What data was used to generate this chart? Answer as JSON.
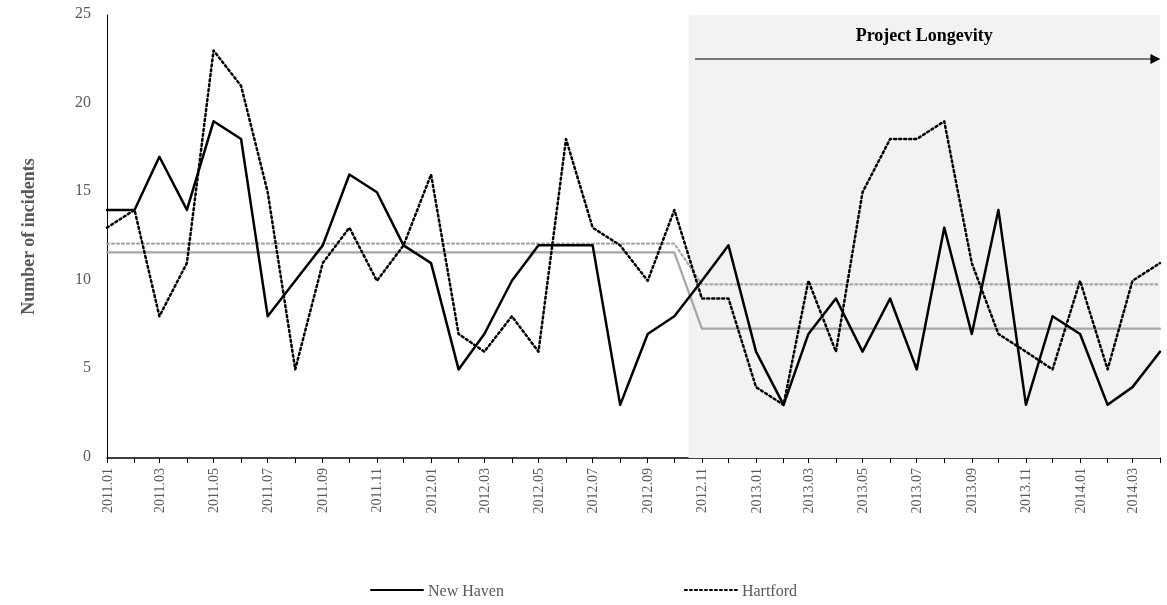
{
  "chart_data": {
    "type": "line",
    "ylabel": "Number of incidents",
    "x": [
      "2011-01",
      "2011-02",
      "2011-03",
      "2011-04",
      "2011-05",
      "2011-06",
      "2011-07",
      "2011-08",
      "2011-09",
      "2011-10",
      "2011-11",
      "2011-12",
      "2012-01",
      "2012-02",
      "2012-03",
      "2012-04",
      "2012-05",
      "2012-06",
      "2012-07",
      "2012-08",
      "2012-09",
      "2012-10",
      "2012-11",
      "2012-12",
      "2013-01",
      "2013-02",
      "2013-03",
      "2013-04",
      "2013-05",
      "2013-06",
      "2013-07",
      "2013-08",
      "2013-09",
      "2013-10",
      "2013-11",
      "2013-12",
      "2014-01",
      "2014-02",
      "2014-03",
      "2014-04"
    ],
    "xlim": [
      "2011-01",
      "2014-04"
    ],
    "xticks": [
      {
        "value": "2011-01",
        "label": "2011.01"
      },
      {
        "value": "2011-02",
        "label": null
      },
      {
        "value": "2011-03",
        "label": "2011.03"
      },
      {
        "value": "2011-04",
        "label": null
      },
      {
        "value": "2011-05",
        "label": "2011.05"
      },
      {
        "value": "2011-06",
        "label": null
      },
      {
        "value": "2011-07",
        "label": "2011.07"
      },
      {
        "value": "2011-08",
        "label": null
      },
      {
        "value": "2011-09",
        "label": "2011.09"
      },
      {
        "value": "2011-10",
        "label": null
      },
      {
        "value": "2011-11",
        "label": "2011.11"
      },
      {
        "value": "2011-12",
        "label": null
      },
      {
        "value": "2012-01",
        "label": "2012.01"
      },
      {
        "value": "2012-02",
        "label": null
      },
      {
        "value": "2012-03",
        "label": "2012.03"
      },
      {
        "value": "2012-04",
        "label": null
      },
      {
        "value": "2012-05",
        "label": "2012.05"
      },
      {
        "value": "2012-06",
        "label": null
      },
      {
        "value": "2012-07",
        "label": "2012.07"
      },
      {
        "value": "2012-08",
        "label": null
      },
      {
        "value": "2012-09",
        "label": "2012.09"
      },
      {
        "value": "2012-10",
        "label": null
      },
      {
        "value": "2012-11",
        "label": "2012.11"
      },
      {
        "value": "2012-12",
        "label": null
      },
      {
        "value": "2013-01",
        "label": "2013.01"
      },
      {
        "value": "2013-02",
        "label": null
      },
      {
        "value": "2013-03",
        "label": "2013.03"
      },
      {
        "value": "2013-04",
        "label": null
      },
      {
        "value": "2013-05",
        "label": "2013.05"
      },
      {
        "value": "2013-06",
        "label": null
      },
      {
        "value": "2013-07",
        "label": "2013.07"
      },
      {
        "value": "2013-08",
        "label": null
      },
      {
        "value": "2013-09",
        "label": "2013.09"
      },
      {
        "value": "2013-10",
        "label": null
      },
      {
        "value": "2013-11",
        "label": "2013.11"
      },
      {
        "value": "2013-12",
        "label": null
      },
      {
        "value": "2014-01",
        "label": "2014.01"
      },
      {
        "value": "2014-02",
        "label": null
      },
      {
        "value": "2014-03",
        "label": "2014.03"
      },
      {
        "value": "2014-04",
        "label": null
      }
    ],
    "series": [
      {
        "name": "New Haven",
        "color": "#000000",
        "line_style": "solid",
        "values": [
          14,
          14,
          17,
          14,
          19,
          18,
          8,
          10,
          12,
          16,
          15,
          12,
          11,
          5,
          7,
          10,
          12,
          12,
          12,
          3,
          7,
          8,
          10,
          12,
          6,
          3,
          7,
          9,
          6,
          9,
          5,
          13,
          7,
          14,
          3,
          8,
          7,
          3,
          4,
          6
        ]
      },
      {
        "name": "Hartford",
        "color": "#000000",
        "line_style": "dotted",
        "values": [
          13,
          14,
          8,
          11,
          23,
          21,
          15,
          5,
          11,
          13,
          10,
          12,
          16,
          7,
          6,
          8,
          6,
          18,
          13,
          12,
          10,
          14,
          9,
          9,
          4,
          3,
          10,
          6,
          15,
          18,
          18,
          19,
          11,
          7,
          6,
          5,
          10,
          5,
          10,
          11
        ]
      },
      {
        "color": "#a6a6a6",
        "line_style": "solid",
        "values": [
          11.6,
          11.6,
          11.6,
          11.6,
          11.6,
          11.6,
          11.6,
          11.6,
          11.6,
          11.6,
          11.6,
          11.6,
          11.6,
          11.6,
          11.6,
          11.6,
          11.6,
          11.6,
          11.6,
          11.6,
          11.6,
          11.6,
          7.3,
          7.3,
          7.3,
          7.3,
          7.3,
          7.3,
          7.3,
          7.3,
          7.3,
          7.3,
          7.3,
          7.3,
          7.3,
          7.3,
          7.3,
          7.3,
          7.3,
          7.3
        ]
      },
      {
        "color": "#a6a6a6",
        "line_style": "dotted",
        "values": [
          12.1,
          12.1,
          12.1,
          12.1,
          12.1,
          12.1,
          12.1,
          12.1,
          12.1,
          12.1,
          12.1,
          12.1,
          12.1,
          12.1,
          12.1,
          12.1,
          12.1,
          12.1,
          12.1,
          12.1,
          12.1,
          12.1,
          9.8,
          9.8,
          9.8,
          9.8,
          9.8,
          9.8,
          9.8,
          9.8,
          9.8,
          9.8,
          9.8,
          9.8,
          9.8,
          9.8,
          9.8,
          9.8,
          9.8,
          9.8
        ]
      }
    ],
    "bands": [
      {
        "axis": "x",
        "from": "2012-10-17",
        "to": "2014-04",
        "label": "Project Longevity",
        "color": "#f2f2f2"
      }
    ],
    "ylim": [
      0,
      25
    ],
    "yticks": [
      0,
      5,
      10,
      15,
      20,
      25
    ],
    "grid": false,
    "legend": "bottom",
    "marker": "none"
  }
}
